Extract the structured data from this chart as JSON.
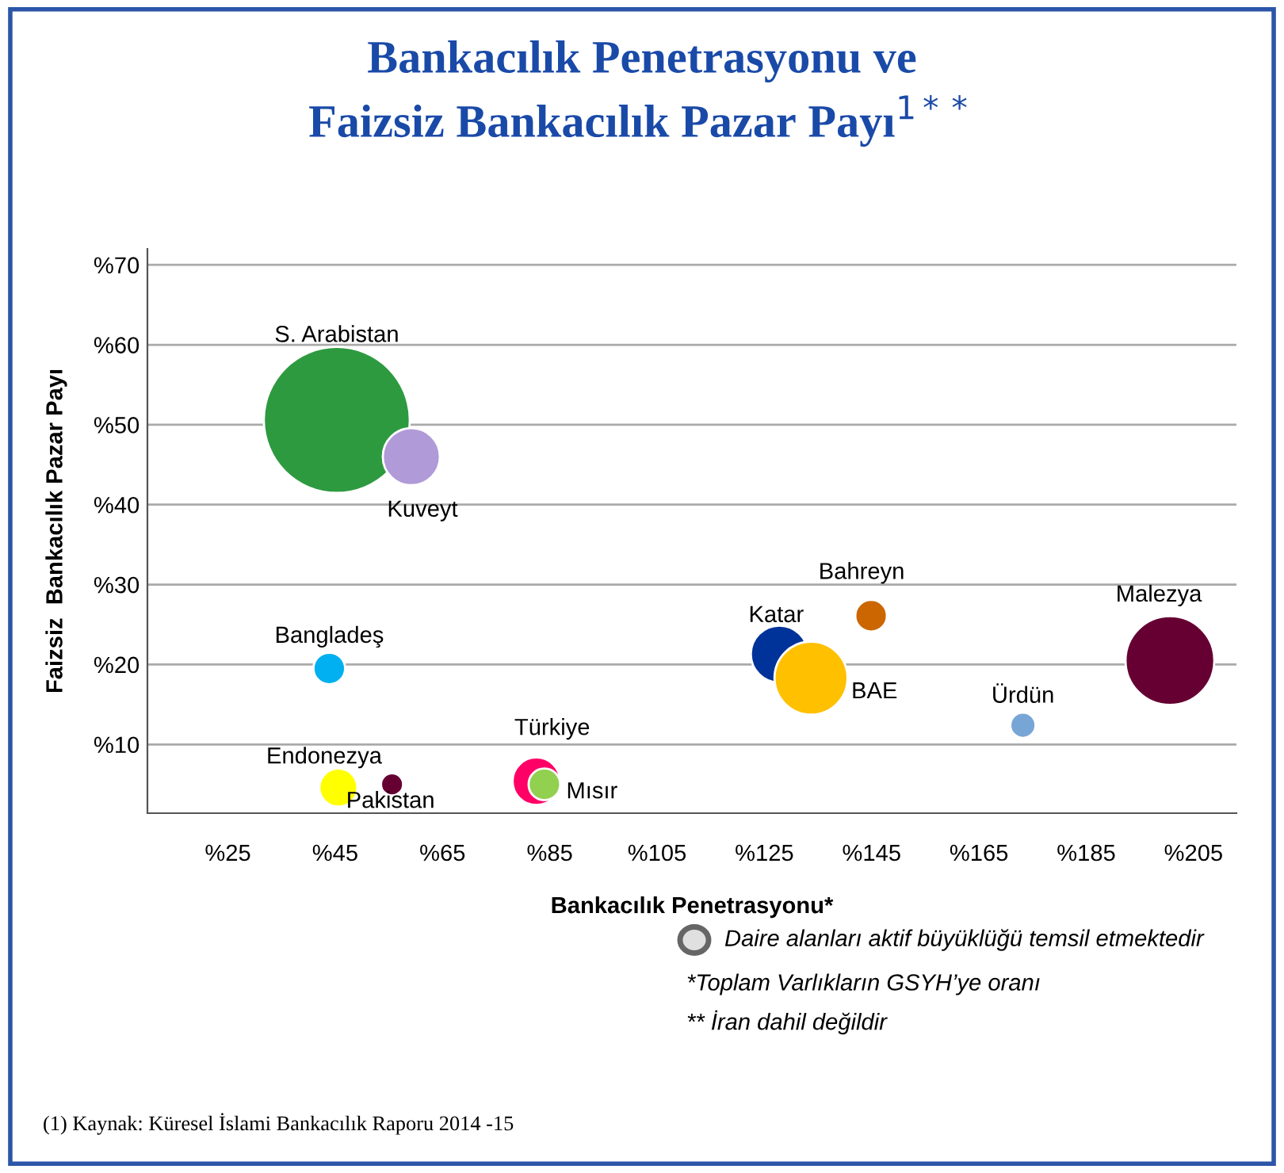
{
  "chart_data": {
    "type": "bubble",
    "title": "Bankacılık Penetrasyonu ve\nFaizsiz Bankacılık Pazar Payı$^{1**}$",
    "xlabel": "Bankacılık Penetrasyonu*",
    "ylabel": "Faizsiz  Bankacılık Pazar Payı",
    "xlim": [
      10,
      213
    ],
    "ylim": [
      1.4,
      72
    ],
    "xticks": [
      {
        "value": 25,
        "label": "%25"
      },
      {
        "value": 45,
        "label": "%45"
      },
      {
        "value": 65,
        "label": "%65"
      },
      {
        "value": 85,
        "label": "%85"
      },
      {
        "value": 105,
        "label": "%105"
      },
      {
        "value": 125,
        "label": "%125"
      },
      {
        "value": 145,
        "label": "%145"
      },
      {
        "value": 165,
        "label": "%165"
      },
      {
        "value": 185,
        "label": "%185"
      },
      {
        "value": 205,
        "label": "%205"
      }
    ],
    "yticks": [
      {
        "value": 10,
        "label": "%10"
      },
      {
        "value": 20,
        "label": "%20"
      },
      {
        "value": 30,
        "label": "%30"
      },
      {
        "value": 40,
        "label": "%40"
      },
      {
        "value": 50,
        "label": "%50"
      },
      {
        "value": 60,
        "label": "%60"
      },
      {
        "value": 70,
        "label": "%70"
      }
    ],
    "grid": "y",
    "series": [
      {
        "name": "S. Arabistan",
        "color": "#2e9a40",
        "x": [
          45.3
        ],
        "values": [
          50.6
        ],
        "sizes": [
          1
        ]
      },
      {
        "name": "Kuveyt",
        "color": "#b09ad8",
        "x": [
          59.2
        ],
        "values": [
          46.0
        ],
        "sizes": [
          0.153
        ]
      },
      {
        "name": "Bangladeş",
        "color": "#00b0f0",
        "x": [
          43.9
        ],
        "values": [
          19.5
        ],
        "sizes": [
          0.047
        ]
      },
      {
        "name": "Endonezya",
        "color": "#ffff00",
        "x": [
          45.6
        ],
        "values": [
          4.6
        ],
        "sizes": [
          0.068
        ]
      },
      {
        "name": "Pakistan",
        "color": "#660033",
        "x": [
          55.6
        ],
        "values": [
          5.0
        ],
        "sizes": [
          0.023
        ]
      },
      {
        "name": "Türkiye",
        "color": "#ff0066",
        "x": [
          82.5
        ],
        "values": [
          5.4
        ],
        "sizes": [
          0.106
        ]
      },
      {
        "name": "Mısır",
        "color": "#92d050",
        "x": [
          84.0
        ],
        "values": [
          5.0
        ],
        "sizes": [
          0.047
        ]
      },
      {
        "name": "Katar",
        "color": "#003399",
        "x": [
          127.8
        ],
        "values": [
          21.3
        ],
        "sizes": [
          0.153
        ]
      },
      {
        "name": "BAE",
        "color": "#ffc000",
        "x": [
          133.7
        ],
        "values": [
          18.3
        ],
        "sizes": [
          0.25
        ]
      },
      {
        "name": "Bahreyn",
        "color": "#cc6600",
        "x": [
          144.9
        ],
        "values": [
          26.1
        ],
        "sizes": [
          0.047
        ]
      },
      {
        "name": "Ürdün",
        "color": "#77a6d6",
        "x": [
          173.2
        ],
        "values": [
          12.4
        ],
        "sizes": [
          0.03
        ]
      },
      {
        "name": "Malezya",
        "color": "#660033",
        "x": [
          200.6
        ],
        "values": [
          20.5
        ],
        "sizes": [
          0.37
        ]
      }
    ],
    "annotations": [
      "Daire alanları aktif büyüklüğü temsil etmektedir",
      "*Toplam Varlıkların GSYH’ye oranı",
      "** İran dahil değildir",
      "(1) Kaynak: Küresel İslami Bankacılık Raporu 2014 -15"
    ]
  }
}
